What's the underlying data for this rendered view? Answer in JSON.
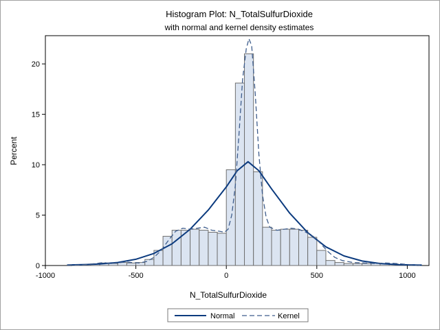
{
  "chart_data": {
    "type": "bar",
    "title": "Histogram Plot: N_TotalSulfurDioxide",
    "subtitle": "with normal and kernel density estimates",
    "xlabel": "N_TotalSulfurDioxide",
    "ylabel": "Percent",
    "xlim": [
      -1000,
      1120
    ],
    "ylim": [
      0,
      22.8
    ],
    "xticks": [
      -1000,
      -500,
      0,
      500,
      1000
    ],
    "yticks": [
      0,
      5,
      10,
      15,
      20
    ],
    "bin_width": 50,
    "bins": [
      {
        "x": -875,
        "value": 0.0
      },
      {
        "x": -825,
        "value": 0.05
      },
      {
        "x": -775,
        "value": 0.1
      },
      {
        "x": -725,
        "value": 0.15
      },
      {
        "x": -675,
        "value": 0.25
      },
      {
        "x": -625,
        "value": 0.2
      },
      {
        "x": -575,
        "value": 0.3
      },
      {
        "x": -525,
        "value": 0.25
      },
      {
        "x": -475,
        "value": 0.3
      },
      {
        "x": -425,
        "value": 0.6
      },
      {
        "x": -375,
        "value": 1.5
      },
      {
        "x": -325,
        "value": 2.9
      },
      {
        "x": -275,
        "value": 3.5
      },
      {
        "x": -225,
        "value": 3.5
      },
      {
        "x": -175,
        "value": 3.6
      },
      {
        "x": -125,
        "value": 3.5
      },
      {
        "x": -75,
        "value": 3.3
      },
      {
        "x": -25,
        "value": 3.2
      },
      {
        "x": 25,
        "value": 9.5
      },
      {
        "x": 75,
        "value": 18.1
      },
      {
        "x": 125,
        "value": 21.0
      },
      {
        "x": 175,
        "value": 9.3
      },
      {
        "x": 225,
        "value": 3.8
      },
      {
        "x": 275,
        "value": 3.5
      },
      {
        "x": 325,
        "value": 3.6
      },
      {
        "x": 375,
        "value": 3.6
      },
      {
        "x": 425,
        "value": 3.5
      },
      {
        "x": 475,
        "value": 2.8
      },
      {
        "x": 525,
        "value": 1.5
      },
      {
        "x": 575,
        "value": 0.5
      },
      {
        "x": 625,
        "value": 0.3
      },
      {
        "x": 675,
        "value": 0.2
      },
      {
        "x": 725,
        "value": 0.2
      },
      {
        "x": 775,
        "value": 0.2
      },
      {
        "x": 825,
        "value": 0.25
      },
      {
        "x": 875,
        "value": 0.2
      },
      {
        "x": 925,
        "value": 0.15
      },
      {
        "x": 975,
        "value": 0.1
      },
      {
        "x": 1025,
        "value": 0.05
      },
      {
        "x": 1075,
        "value": 0.0
      }
    ],
    "series": [
      {
        "name": "Normal",
        "style": "solid",
        "color": "#0b3a7e",
        "points": [
          [
            -880,
            0.05
          ],
          [
            -800,
            0.08
          ],
          [
            -700,
            0.15
          ],
          [
            -600,
            0.3
          ],
          [
            -500,
            0.62
          ],
          [
            -400,
            1.2
          ],
          [
            -300,
            2.15
          ],
          [
            -200,
            3.6
          ],
          [
            -100,
            5.5
          ],
          [
            0,
            7.8
          ],
          [
            60,
            9.4
          ],
          [
            120,
            10.3
          ],
          [
            180,
            9.4
          ],
          [
            250,
            7.6
          ],
          [
            350,
            5.2
          ],
          [
            450,
            3.25
          ],
          [
            550,
            1.85
          ],
          [
            650,
            0.95
          ],
          [
            750,
            0.45
          ],
          [
            850,
            0.2
          ],
          [
            950,
            0.09
          ],
          [
            1080,
            0.04
          ]
        ]
      },
      {
        "name": "Kernel",
        "style": "dashed",
        "color": "#3d5c8c",
        "points": [
          [
            -880,
            0.05
          ],
          [
            -800,
            0.05
          ],
          [
            -720,
            0.2
          ],
          [
            -680,
            0.3
          ],
          [
            -640,
            0.2
          ],
          [
            -600,
            0.25
          ],
          [
            -560,
            0.35
          ],
          [
            -520,
            0.3
          ],
          [
            -480,
            0.25
          ],
          [
            -440,
            0.4
          ],
          [
            -400,
            0.8
          ],
          [
            -360,
            1.5
          ],
          [
            -320,
            2.5
          ],
          [
            -280,
            3.4
          ],
          [
            -240,
            3.7
          ],
          [
            -200,
            3.6
          ],
          [
            -160,
            3.7
          ],
          [
            -120,
            3.8
          ],
          [
            -80,
            3.5
          ],
          [
            -40,
            3.4
          ],
          [
            -10,
            3.3
          ],
          [
            10,
            3.6
          ],
          [
            30,
            5.0
          ],
          [
            50,
            8.0
          ],
          [
            70,
            13.0
          ],
          [
            90,
            18.5
          ],
          [
            110,
            21.5
          ],
          [
            125,
            22.5
          ],
          [
            140,
            21.8
          ],
          [
            160,
            17.0
          ],
          [
            180,
            11.0
          ],
          [
            200,
            7.0
          ],
          [
            220,
            4.8
          ],
          [
            240,
            3.8
          ],
          [
            280,
            3.5
          ],
          [
            320,
            3.6
          ],
          [
            360,
            3.7
          ],
          [
            400,
            3.6
          ],
          [
            440,
            3.3
          ],
          [
            480,
            2.9
          ],
          [
            520,
            2.2
          ],
          [
            560,
            1.4
          ],
          [
            600,
            0.8
          ],
          [
            640,
            0.5
          ],
          [
            700,
            0.3
          ],
          [
            760,
            0.25
          ],
          [
            820,
            0.2
          ],
          [
            880,
            0.25
          ],
          [
            940,
            0.2
          ],
          [
            1000,
            0.1
          ],
          [
            1080,
            0.03
          ]
        ]
      }
    ],
    "legend": {
      "position": "bottom",
      "items": [
        "Normal",
        "Kernel"
      ]
    },
    "grid": false,
    "colors": {
      "bar_fill": "#dbe4f1",
      "bar_stroke": "#6e6e6e",
      "axis": "#000000"
    }
  }
}
